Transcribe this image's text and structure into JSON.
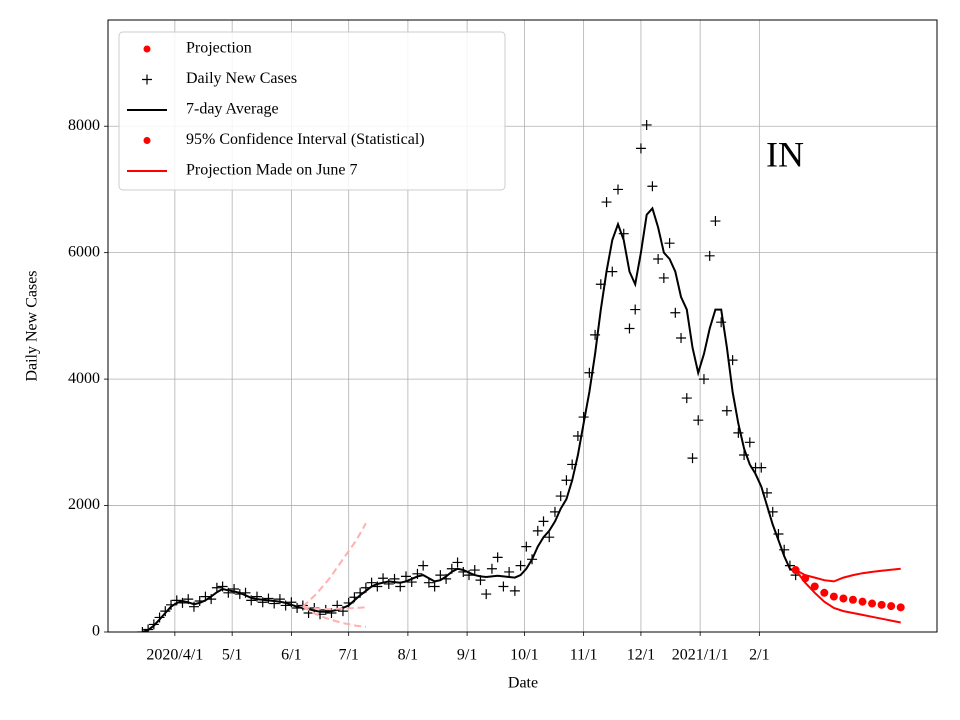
{
  "chart_data": {
    "type": "scatter-line",
    "annotation": "IN",
    "xlabel": "Date",
    "ylabel": "Daily New Cases",
    "xlim": [
      "2020-02-26",
      "2021-05-05"
    ],
    "ylim": [
      0,
      9680
    ],
    "xticks": [
      {
        "value": "2020-04-01",
        "label": "2020/4/1"
      },
      {
        "value": "2020-05-01",
        "label": "5/1"
      },
      {
        "value": "2020-06-01",
        "label": "6/1"
      },
      {
        "value": "2020-07-01",
        "label": "7/1"
      },
      {
        "value": "2020-08-01",
        "label": "8/1"
      },
      {
        "value": "2020-09-01",
        "label": "9/1"
      },
      {
        "value": "2020-10-01",
        "label": "10/1"
      },
      {
        "value": "2020-11-01",
        "label": "11/1"
      },
      {
        "value": "2020-12-01",
        "label": "12/1"
      },
      {
        "value": "2021-01-01",
        "label": "2021/1/1"
      },
      {
        "value": "2021-02-01",
        "label": "2/1"
      }
    ],
    "yticks": [
      0,
      2000,
      4000,
      6000,
      8000
    ],
    "grid": true,
    "legend_position": "upper left",
    "legend": [
      {
        "label": "Projection",
        "color": "#ff0000",
        "marker": "dot"
      },
      {
        "label": "Daily New Cases",
        "color": "#000000",
        "marker": "plus"
      },
      {
        "label": "7-day Average",
        "color": "#000000",
        "marker": "line"
      },
      {
        "label": "95% Confidence Interval (Statistical)",
        "color": "#ff0000",
        "marker": "dot"
      },
      {
        "label": "Projection Made on June 7",
        "color": "#ff0000",
        "marker": "line"
      }
    ],
    "x": [
      "2020-03-15",
      "2020-03-18",
      "2020-03-21",
      "2020-03-24",
      "2020-03-27",
      "2020-03-30",
      "2020-04-02",
      "2020-04-05",
      "2020-04-08",
      "2020-04-11",
      "2020-04-14",
      "2020-04-17",
      "2020-04-20",
      "2020-04-23",
      "2020-04-26",
      "2020-04-29",
      "2020-05-02",
      "2020-05-05",
      "2020-05-08",
      "2020-05-11",
      "2020-05-14",
      "2020-05-17",
      "2020-05-20",
      "2020-05-23",
      "2020-05-26",
      "2020-05-29",
      "2020-06-01",
      "2020-06-04",
      "2020-06-07",
      "2020-06-10",
      "2020-06-13",
      "2020-06-16",
      "2020-06-19",
      "2020-06-22",
      "2020-06-25",
      "2020-06-28",
      "2020-07-01",
      "2020-07-04",
      "2020-07-07",
      "2020-07-10",
      "2020-07-13",
      "2020-07-16",
      "2020-07-19",
      "2020-07-22",
      "2020-07-25",
      "2020-07-28",
      "2020-07-31",
      "2020-08-03",
      "2020-08-06",
      "2020-08-09",
      "2020-08-12",
      "2020-08-15",
      "2020-08-18",
      "2020-08-21",
      "2020-08-24",
      "2020-08-27",
      "2020-08-30",
      "2020-09-02",
      "2020-09-05",
      "2020-09-08",
      "2020-09-11",
      "2020-09-14",
      "2020-09-17",
      "2020-09-20",
      "2020-09-23",
      "2020-09-26",
      "2020-09-29",
      "2020-10-02",
      "2020-10-05",
      "2020-10-08",
      "2020-10-11",
      "2020-10-14",
      "2020-10-17",
      "2020-10-20",
      "2020-10-23",
      "2020-10-26",
      "2020-10-29",
      "2020-11-01",
      "2020-11-04",
      "2020-11-07",
      "2020-11-10",
      "2020-11-13",
      "2020-11-16",
      "2020-11-19",
      "2020-11-22",
      "2020-11-25",
      "2020-11-28",
      "2020-12-01",
      "2020-12-04",
      "2020-12-07",
      "2020-12-10",
      "2020-12-13",
      "2020-12-16",
      "2020-12-19",
      "2020-12-22",
      "2020-12-25",
      "2020-12-28",
      "2020-12-31",
      "2021-01-03",
      "2021-01-06",
      "2021-01-09",
      "2021-01-12",
      "2021-01-15",
      "2021-01-18",
      "2021-01-21",
      "2021-01-24",
      "2021-01-27",
      "2021-01-30",
      "2021-02-02",
      "2021-02-05",
      "2021-02-08",
      "2021-02-11",
      "2021-02-14",
      "2021-02-17",
      "2021-02-20"
    ],
    "x_projection": [
      "2021-02-20",
      "2021-02-25",
      "2021-03-02",
      "2021-03-07",
      "2021-03-12",
      "2021-03-17",
      "2021-03-22",
      "2021-03-27",
      "2021-04-01",
      "2021-04-06",
      "2021-04-11",
      "2021-04-16"
    ],
    "x_june7": [
      "2020-06-07",
      "2020-06-14",
      "2020-06-21",
      "2020-06-28",
      "2020-07-05",
      "2020-07-10"
    ],
    "series": [
      {
        "style": "plus",
        "color": "#000000",
        "xkey": "x",
        "values": [
          0,
          40,
          120,
          230,
          330,
          430,
          500,
          460,
          520,
          400,
          490,
          560,
          520,
          700,
          720,
          620,
          680,
          600,
          620,
          500,
          560,
          470,
          530,
          450,
          520,
          420,
          470,
          380,
          420,
          300,
          380,
          280,
          350,
          300,
          420,
          330,
          460,
          550,
          620,
          700,
          780,
          720,
          850,
          760,
          840,
          720,
          880,
          790,
          920,
          1050,
          780,
          720,
          900,
          840,
          1000,
          1100,
          950,
          900,
          980,
          820,
          600,
          1000,
          1180,
          720,
          950,
          650,
          1050,
          1350,
          1150,
          1600,
          1750,
          1500,
          1900,
          2150,
          2400,
          2650,
          3100,
          3400,
          4100,
          4700,
          5500,
          6800,
          5700,
          7000,
          6300,
          4800,
          5100,
          7650,
          8020,
          7050,
          5900,
          5600,
          6150,
          5050,
          4650,
          3700,
          2750,
          3350,
          4000,
          5950,
          6500,
          4900,
          3500,
          4300,
          3150,
          2800,
          3000,
          2600,
          2600,
          2200,
          1900,
          1550,
          1300,
          1050,
          900
        ]
      },
      {
        "style": "line",
        "color": "#000000",
        "xkey": "x",
        "values": [
          0,
          30,
          100,
          200,
          300,
          400,
          460,
          490,
          470,
          440,
          460,
          500,
          560,
          630,
          680,
          660,
          640,
          620,
          580,
          540,
          520,
          510,
          500,
          490,
          480,
          460,
          430,
          400,
          380,
          360,
          340,
          320,
          320,
          330,
          350,
          380,
          420,
          500,
          580,
          650,
          720,
          760,
          780,
          800,
          790,
          780,
          800,
          840,
          880,
          900,
          850,
          800,
          820,
          880,
          950,
          1000,
          980,
          940,
          900,
          880,
          870,
          880,
          890,
          880,
          870,
          860,
          900,
          1000,
          1150,
          1350,
          1500,
          1600,
          1750,
          1950,
          2100,
          2400,
          2800,
          3300,
          3800,
          4400,
          5100,
          5700,
          6200,
          6450,
          6200,
          5700,
          5500,
          6000,
          6600,
          6700,
          6400,
          6000,
          5900,
          5700,
          5300,
          5100,
          4500,
          4100,
          4400,
          4800,
          5100,
          5100,
          4500,
          3800,
          3300,
          2900,
          2650,
          2500,
          2300,
          2000,
          1700,
          1450,
          1200,
          1000,
          950
        ]
      },
      {
        "style": "redline",
        "color": "#ff0000",
        "xkey": "x_projection",
        "values": [
          980,
          900,
          860,
          820,
          800,
          860,
          900,
          930,
          950,
          970,
          985,
          1000
        ]
      },
      {
        "style": "redline",
        "color": "#ff0000",
        "xkey": "x_projection",
        "values": [
          980,
          780,
          620,
          480,
          380,
          330,
          300,
          270,
          240,
          210,
          180,
          150
        ]
      },
      {
        "style": "dot",
        "color": "#ff0000",
        "xkey": "x_projection",
        "values": [
          980,
          850,
          720,
          620,
          560,
          530,
          510,
          480,
          450,
          430,
          410,
          390
        ]
      },
      {
        "style": "dashed",
        "color": "#ffb0b0",
        "xkey": "x_june7",
        "values": [
          400,
          600,
          850,
          1150,
          1450,
          1720
        ]
      },
      {
        "style": "dashed",
        "color": "#ffb0b0",
        "xkey": "x_june7",
        "values": [
          400,
          280,
          200,
          140,
          100,
          80
        ]
      },
      {
        "style": "dashed",
        "color": "#ffb0b0",
        "xkey": "x_june7",
        "values": [
          400,
          370,
          360,
          370,
          380,
          390
        ]
      }
    ]
  }
}
